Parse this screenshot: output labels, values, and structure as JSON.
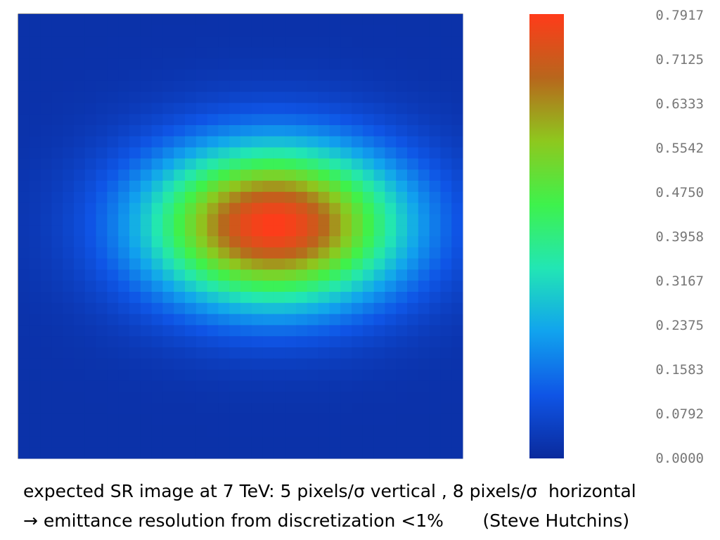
{
  "chart_data": {
    "type": "heatmap",
    "title": "",
    "xlabel": "",
    "ylabel": "",
    "grid": false,
    "colormap": [
      "#0a2a9c",
      "#0f55e6",
      "#11a3ee",
      "#22e6b4",
      "#3ef24c",
      "#8ec81e",
      "#b8661c",
      "#ff3b1a"
    ],
    "grid_size": {
      "columns": 40,
      "rows": 40
    },
    "distribution": {
      "shape": "gaussian",
      "peak_value": 0.7917,
      "peak_column": 23,
      "peak_row": 19,
      "sigma_columns": 8,
      "sigma_rows": 5,
      "baseline": 0.02
    },
    "colorbar": {
      "min": 0.0,
      "max": 0.7917,
      "tick_labels": [
        "0.7917",
        "0.7125",
        "0.6333",
        "0.5542",
        "0.4750",
        "0.3958",
        "0.3167",
        "0.2375",
        "0.1583",
        "0.0792",
        "0.0000"
      ]
    }
  },
  "caption": {
    "line1": "expected SR image at 7 TeV: 5 pixels/σ vertical , 8 pixels/σ  horizontal",
    "line2": "→ emittance resolution from discretization <1%       (Steve Hutchins)"
  }
}
